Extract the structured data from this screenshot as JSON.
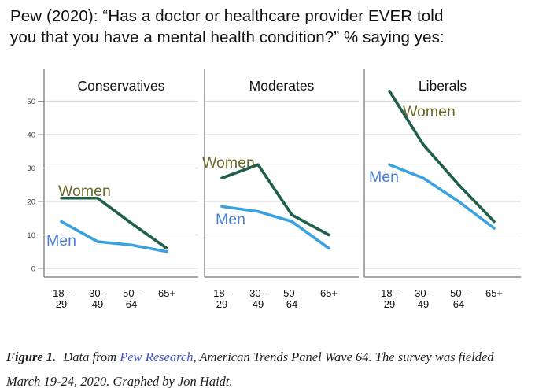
{
  "header": {
    "title_full": "Pew (2020): “Has a doctor or healthcare provider EVER told you that you have a mental health condition?” % saying yes:",
    "title_lines": [
      "Pew (2020): “Has a doctor or healthcare provider EVER told",
      "you that you have a mental health condition?” % saying yes:"
    ]
  },
  "chart_data": {
    "type": "line",
    "title": "Pew (2020): “Has a doctor or healthcare provider EVER told you that you have a mental health condition?” % saying yes:",
    "categories": [
      "18–29",
      "30–49",
      "50–64",
      "65+"
    ],
    "categories_display": [
      [
        "18–",
        "29"
      ],
      [
        "30–",
        "49"
      ],
      [
        "50–",
        "64"
      ],
      [
        "65+",
        ""
      ]
    ],
    "yticks": [
      0,
      10,
      20,
      30,
      40,
      50
    ],
    "ylim": [
      0,
      55
    ],
    "xlabel": "",
    "ylabel": "",
    "grid": true,
    "legend_position": "inline-labels",
    "panels": [
      {
        "title": "Conservatives",
        "series": [
          {
            "name": "Women",
            "values": [
              21,
              21,
              13.5,
              6
            ]
          },
          {
            "name": "Men",
            "values": [
              14,
              8,
              7,
              5
            ]
          }
        ]
      },
      {
        "title": "Moderates",
        "series": [
          {
            "name": "Women",
            "values": [
              27,
              31,
              16,
              10
            ]
          },
          {
            "name": "Men",
            "values": [
              18.5,
              17,
              14,
              6
            ]
          }
        ]
      },
      {
        "title": "Liberals",
        "series": [
          {
            "name": "Women",
            "values": [
              53,
              37,
              25,
              14
            ]
          },
          {
            "name": "Men",
            "values": [
              31,
              27,
              20,
              12
            ]
          }
        ]
      }
    ],
    "colors": {
      "women_line": "#1f5f4b",
      "men_line": "#3aa2df",
      "women_label": "#6b682a",
      "men_label": "#4a80d4",
      "grid": "#d9d9d9",
      "axis": "#8c8c8c",
      "tick_text": "#3f3f3f",
      "label_text": "#111111",
      "panel_title": "#111111"
    }
  },
  "caption": {
    "figure_label": "Figure 1.",
    "text_before_link": " Data from ",
    "link_text": "Pew Research",
    "text_after_link": ", American Trends Panel Wave 64. The survey was fielded March 19-24, 2020. Graphed by Jon Haidt.",
    "link_color": "#3e53c5"
  }
}
